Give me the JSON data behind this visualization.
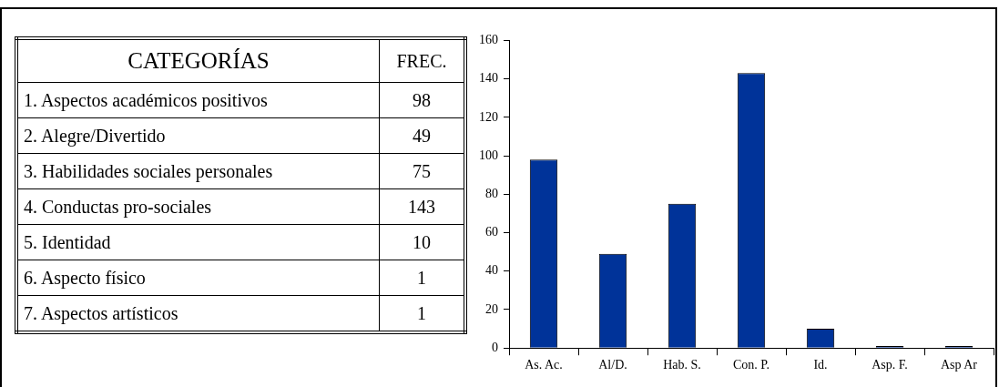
{
  "chart_data": {
    "type": "bar",
    "categories": [
      "As. Ac.",
      "Al/D.",
      "Hab. S.",
      "Con. P.",
      "Id.",
      "Asp. F.",
      "Asp Ar"
    ],
    "values": [
      98,
      49,
      75,
      143,
      10,
      1,
      1
    ],
    "color": "#003399",
    "ylim": [
      0,
      160
    ],
    "yticks": [
      0,
      20,
      40,
      60,
      80,
      100,
      120,
      140,
      160
    ],
    "grid": false,
    "legend": false,
    "annotations": [
      "CATEGORÍAS",
      "FREC.",
      "1. Aspectos académicos positivos",
      "98",
      "2. Alegre/Divertido",
      "49",
      "3. Habilidades sociales personales",
      "75",
      "4. Conductas pro-sociales",
      "143",
      "5. Identidad",
      "10",
      "6. Aspecto físico",
      "1",
      "7. Aspectos artísticos",
      "1"
    ]
  }
}
